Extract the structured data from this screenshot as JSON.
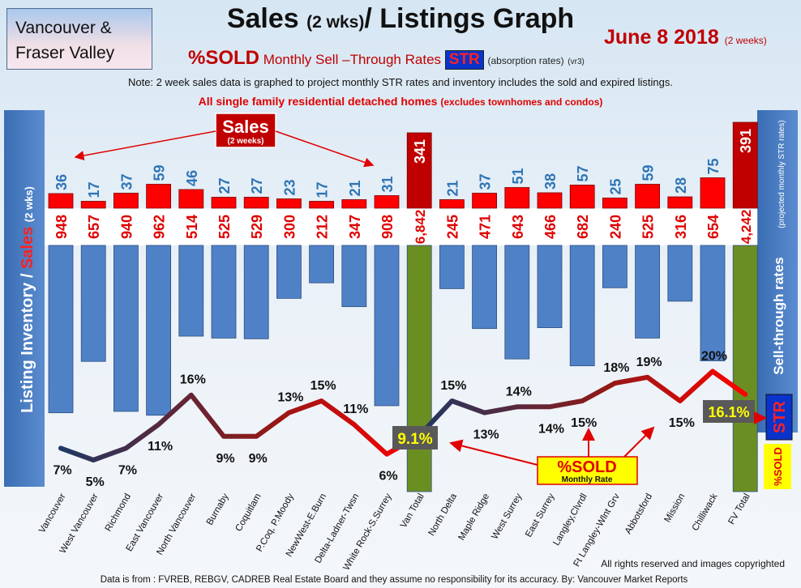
{
  "header": {
    "region_line1": "Vancouver &",
    "region_line2": "Fraser Valley",
    "title_main": "Sales",
    "title_small": "(2 wks)",
    "title_rest": "/ Listings Graph",
    "date": "June 8 2018",
    "date_note": "(2 weeks)",
    "sold_label": "%SOLD",
    "str_line_words": [
      "Monthly",
      "Sell",
      "–Through",
      "Rates"
    ],
    "str_badge": "STR",
    "absorption": "(absorption rates)",
    "version": "(vr3)",
    "note": "Note: 2 week sales data is graphed to project monthly STR rates and inventory includes the sold and expired listings.",
    "scope_bold": "All single family residential detached homes",
    "scope_paren": "(excludes townhomes and condos)"
  },
  "side_left": {
    "label_a": "Listing Inventory /",
    "label_b": "Sales",
    "label_c": "(2 wks)"
  },
  "side_right": {
    "label_a": "Sell-through rates",
    "label_b": "(projected monthly STR rates)",
    "badge_str": "STR",
    "badge_sold": "%SOLD",
    "badge_value": "16.1%"
  },
  "callouts": {
    "sales_title": "Sales",
    "sales_sub": "(2 weeks)",
    "sold_title": "%SOLD",
    "sold_sub": "Monthly Rate",
    "van_total_str": "9.1%"
  },
  "footer": {
    "rights": "All rights reserved and  images copyrighted",
    "source": "Data is from : FVREB, REBGV, CADREB Real Estate Board and they assume no responsibility for its accuracy. By: Vancouver Market Reports"
  },
  "colors": {
    "sales_bar": "#ff0000",
    "total_sales_bar": "#c00000",
    "inventory_bar": "#4f81c7",
    "total_inventory_bar": "#6b8e23",
    "str_line_low": "#1f3864",
    "str_line_high": "#ff0000",
    "sales_label": "#2e75b6",
    "inventory_label": "#e00000"
  },
  "chart_data": {
    "type": "bar",
    "title": "Sales (2 wks)/ Listings Graph",
    "categories": [
      "Vancouver",
      "West Vancouver",
      "Richmond",
      "East Vancouver",
      "North Vancouver",
      "Burnaby",
      "Coquitlam",
      "P.Coq, P.Moody",
      "NewWest-E.Burn",
      "Delta-Ladner-Twsn",
      "White Rock-S.Surrey",
      "Van Total",
      "North Delta",
      "Maple Ridge",
      "West Surrey",
      "East Surrey",
      "Langley,Clvrdl",
      "Ft Langley-Wlnt Grv",
      "Abbotsford",
      "Mission",
      "Chilliwack",
      "FV Total"
    ],
    "series": [
      {
        "name": "Sales",
        "values": [
          36,
          17,
          37,
          59,
          46,
          27,
          27,
          23,
          17,
          21,
          31,
          341,
          21,
          37,
          51,
          38,
          57,
          25,
          59,
          28,
          75,
          391
        ]
      },
      {
        "name": "Listing Inventory",
        "values": [
          948,
          657,
          940,
          962,
          514,
          525,
          529,
          300,
          212,
          347,
          908,
          6842,
          245,
          471,
          643,
          466,
          682,
          240,
          525,
          316,
          654,
          4242
        ]
      },
      {
        "name": "%SOLD",
        "values": [
          7,
          5,
          7,
          11,
          16,
          9,
          9,
          13,
          15,
          11,
          6,
          9.1,
          15,
          13,
          14,
          14,
          15,
          18,
          19,
          15,
          20,
          16.1
        ]
      }
    ],
    "sales_labels": [
      "36",
      "17",
      "37",
      "59",
      "46",
      "27",
      "27",
      "23",
      "17",
      "21",
      "31",
      "341",
      "21",
      "37",
      "51",
      "38",
      "57",
      "25",
      "59",
      "28",
      "75",
      "391"
    ],
    "inventory_labels": [
      "948",
      "657",
      "940",
      "962",
      "514",
      "525",
      "529",
      "300",
      "212",
      "347",
      "908",
      "6,842",
      "245",
      "471",
      "643",
      "466",
      "682",
      "240",
      "525",
      "316",
      "654",
      "4,242"
    ],
    "str_labels": [
      "7%",
      "5%",
      "7%",
      "11%",
      "16%",
      "9%",
      "9%",
      "13%",
      "15%",
      "11%",
      "6%",
      "",
      "15%",
      "13%",
      "14%",
      "14%",
      "15%",
      "18%",
      "19%",
      "15%",
      "20%",
      ""
    ],
    "totals_index": [
      11,
      21
    ],
    "grid": false
  }
}
